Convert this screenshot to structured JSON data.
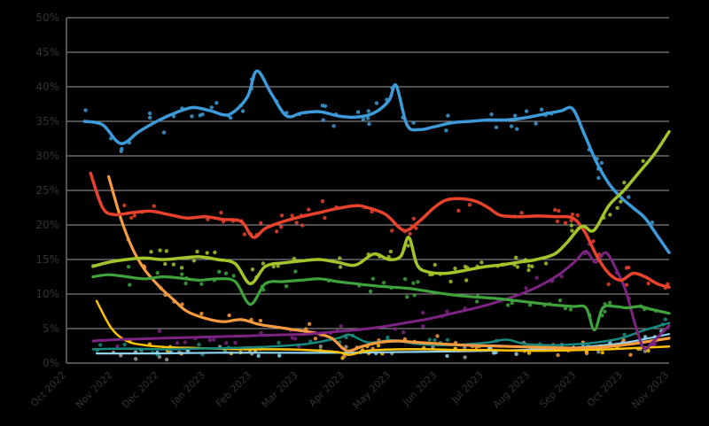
{
  "page": {
    "background": "#000000"
  },
  "chart_data": {
    "type": "line",
    "title": "",
    "xlabel": "",
    "ylabel": "",
    "ylim": [
      0,
      50
    ],
    "y_tick_step": 5,
    "y_tick_labels": [
      "0%",
      "5%",
      "10%",
      "15%",
      "20%",
      "25%",
      "30%",
      "35%",
      "40%",
      "45%",
      "50%"
    ],
    "x_tick_labels": [
      "Oct 2022",
      "Nov 2022",
      "Dec 2022",
      "Jan 2023",
      "Feb 2023",
      "Mar 2023",
      "Apr 2023",
      "May 2023",
      "Jun 2023",
      "Jul 2023",
      "Aug 2023",
      "Sep 2023",
      "Oct 2023",
      "Nov 2023"
    ],
    "grid": true,
    "legend": "none",
    "grid_color": "#9e9e9e",
    "spine_color": "#6e6e6e",
    "axis_text_color": "#333333",
    "marker_style": "scatter-dots-with-trend-lines",
    "series": [
      {
        "name": "gray",
        "color": "#9b9b9b",
        "line_width": 0,
        "dots_only": true,
        "dots": 25,
        "jitter": 1.5,
        "seed": 101,
        "points": [
          [
            0.05,
            1.6
          ],
          [
            0.3,
            1.8
          ],
          [
            0.6,
            2.0
          ],
          [
            0.85,
            2.2
          ],
          [
            1.0,
            2.4
          ]
        ]
      },
      {
        "name": "lightblue",
        "color": "#8fd2ee",
        "line_width": 2.2,
        "dots": 25,
        "jitter": 1.0,
        "seed": 102,
        "points": [
          [
            0.05,
            1.4
          ],
          [
            0.15,
            1.4
          ],
          [
            0.25,
            1.5
          ],
          [
            0.35,
            1.5
          ],
          [
            0.45,
            1.5
          ],
          [
            0.55,
            1.6
          ],
          [
            0.65,
            1.7
          ],
          [
            0.75,
            1.9
          ],
          [
            0.82,
            2.1
          ],
          [
            0.88,
            2.5
          ],
          [
            0.93,
            3.0
          ],
          [
            1.0,
            4.2
          ]
        ]
      },
      {
        "name": "yellow",
        "color": "#ffc200",
        "line_width": 2.5,
        "dots": 30,
        "jitter": 1.0,
        "seed": 103,
        "points": [
          [
            0.05,
            9.0
          ],
          [
            0.075,
            5.0
          ],
          [
            0.1,
            3.2
          ],
          [
            0.13,
            2.6
          ],
          [
            0.17,
            2.3
          ],
          [
            0.21,
            2.2
          ],
          [
            0.25,
            2.1
          ],
          [
            0.3,
            2.0
          ],
          [
            0.35,
            2.0
          ],
          [
            0.4,
            1.9
          ],
          [
            0.45,
            1.6
          ],
          [
            0.47,
            1.2
          ],
          [
            0.5,
            1.8
          ],
          [
            0.55,
            2.0
          ],
          [
            0.6,
            2.0
          ],
          [
            0.65,
            1.9
          ],
          [
            0.7,
            1.9
          ],
          [
            0.75,
            1.8
          ],
          [
            0.8,
            1.8
          ],
          [
            0.85,
            1.9
          ],
          [
            0.9,
            2.0
          ],
          [
            0.95,
            2.2
          ],
          [
            1.0,
            2.4
          ]
        ]
      },
      {
        "name": "teal",
        "color": "#18897f",
        "line_width": 2.5,
        "dots": 30,
        "jitter": 1.0,
        "seed": 104,
        "points": [
          [
            0.044,
            2.0
          ],
          [
            0.1,
            2.1
          ],
          [
            0.16,
            2.0
          ],
          [
            0.22,
            2.1
          ],
          [
            0.28,
            2.2
          ],
          [
            0.34,
            2.4
          ],
          [
            0.4,
            2.8
          ],
          [
            0.45,
            3.6
          ],
          [
            0.47,
            4.1
          ],
          [
            0.5,
            3.0
          ],
          [
            0.54,
            3.3
          ],
          [
            0.58,
            2.8
          ],
          [
            0.62,
            2.6
          ],
          [
            0.66,
            2.7
          ],
          [
            0.7,
            3.0
          ],
          [
            0.73,
            3.4
          ],
          [
            0.76,
            2.8
          ],
          [
            0.8,
            2.6
          ],
          [
            0.84,
            2.7
          ],
          [
            0.88,
            3.0
          ],
          [
            0.92,
            3.6
          ],
          [
            0.96,
            4.8
          ],
          [
            1.0,
            5.8
          ]
        ]
      },
      {
        "name": "orange",
        "color": "#f79b3f",
        "line_width": 3.2,
        "dots": 35,
        "jitter": 1.6,
        "seed": 105,
        "points": [
          [
            0.07,
            27.0
          ],
          [
            0.09,
            21.0
          ],
          [
            0.11,
            16.5
          ],
          [
            0.13,
            13.5
          ],
          [
            0.155,
            11.0
          ],
          [
            0.18,
            9.0
          ],
          [
            0.2,
            7.5
          ],
          [
            0.23,
            6.5
          ],
          [
            0.26,
            6.0
          ],
          [
            0.29,
            6.3
          ],
          [
            0.32,
            5.6
          ],
          [
            0.35,
            5.2
          ],
          [
            0.38,
            4.8
          ],
          [
            0.41,
            4.4
          ],
          [
            0.44,
            3.6
          ],
          [
            0.465,
            1.8
          ],
          [
            0.49,
            2.4
          ],
          [
            0.52,
            3.0
          ],
          [
            0.55,
            3.2
          ],
          [
            0.58,
            3.0
          ],
          [
            0.62,
            2.8
          ],
          [
            0.66,
            2.6
          ],
          [
            0.7,
            2.5
          ],
          [
            0.74,
            2.4
          ],
          [
            0.78,
            2.3
          ],
          [
            0.82,
            2.2
          ],
          [
            0.86,
            2.2
          ],
          [
            0.9,
            2.4
          ],
          [
            0.94,
            2.8
          ],
          [
            0.97,
            3.2
          ],
          [
            1.0,
            3.6
          ]
        ]
      },
      {
        "name": "purple",
        "color": "#7d2381",
        "line_width": 3.0,
        "dots": 40,
        "jitter": 1.8,
        "seed": 106,
        "points": [
          [
            0.044,
            3.2
          ],
          [
            0.08,
            3.4
          ],
          [
            0.12,
            3.5
          ],
          [
            0.16,
            3.6
          ],
          [
            0.2,
            3.7
          ],
          [
            0.24,
            3.8
          ],
          [
            0.28,
            3.9
          ],
          [
            0.32,
            4.0
          ],
          [
            0.36,
            4.1
          ],
          [
            0.4,
            4.2
          ],
          [
            0.44,
            4.5
          ],
          [
            0.48,
            4.8
          ],
          [
            0.52,
            5.2
          ],
          [
            0.56,
            5.8
          ],
          [
            0.6,
            6.4
          ],
          [
            0.64,
            7.2
          ],
          [
            0.68,
            8.0
          ],
          [
            0.72,
            9.0
          ],
          [
            0.76,
            10.2
          ],
          [
            0.79,
            11.4
          ],
          [
            0.82,
            13.0
          ],
          [
            0.845,
            14.8
          ],
          [
            0.862,
            16.2
          ],
          [
            0.878,
            14.6
          ],
          [
            0.895,
            16.0
          ],
          [
            0.912,
            13.6
          ],
          [
            0.928,
            10.5
          ],
          [
            0.944,
            5.5
          ],
          [
            0.958,
            2.2
          ],
          [
            0.972,
            3.0
          ],
          [
            0.986,
            4.2
          ],
          [
            1.0,
            5.4
          ]
        ]
      },
      {
        "name": "green",
        "color": "#3fa33c",
        "line_width": 3.2,
        "dots": 45,
        "jitter": 1.8,
        "seed": 107,
        "points": [
          [
            0.044,
            12.5
          ],
          [
            0.07,
            12.8
          ],
          [
            0.1,
            12.5
          ],
          [
            0.13,
            12.2
          ],
          [
            0.16,
            12.5
          ],
          [
            0.19,
            12.3
          ],
          [
            0.22,
            12.0
          ],
          [
            0.25,
            12.2
          ],
          [
            0.28,
            11.8
          ],
          [
            0.305,
            8.5
          ],
          [
            0.33,
            11.5
          ],
          [
            0.36,
            11.8
          ],
          [
            0.39,
            12.0
          ],
          [
            0.42,
            12.2
          ],
          [
            0.45,
            11.8
          ],
          [
            0.48,
            11.5
          ],
          [
            0.51,
            11.2
          ],
          [
            0.54,
            11.0
          ],
          [
            0.57,
            10.8
          ],
          [
            0.6,
            10.4
          ],
          [
            0.63,
            10.0
          ],
          [
            0.66,
            9.7
          ],
          [
            0.69,
            9.5
          ],
          [
            0.72,
            9.3
          ],
          [
            0.75,
            9.0
          ],
          [
            0.78,
            8.7
          ],
          [
            0.81,
            8.4
          ],
          [
            0.84,
            8.2
          ],
          [
            0.862,
            8.0
          ],
          [
            0.876,
            4.8
          ],
          [
            0.89,
            8.0
          ],
          [
            0.91,
            8.2
          ],
          [
            0.93,
            8.0
          ],
          [
            0.95,
            8.2
          ],
          [
            0.97,
            7.8
          ],
          [
            1.0,
            7.2
          ]
        ]
      },
      {
        "name": "red",
        "color": "#e8422d",
        "line_width": 3.5,
        "dots": 55,
        "jitter": 2.0,
        "seed": 108,
        "points": [
          [
            0.04,
            27.5
          ],
          [
            0.06,
            22.5
          ],
          [
            0.08,
            21.5
          ],
          [
            0.11,
            21.8
          ],
          [
            0.14,
            22.0
          ],
          [
            0.17,
            21.5
          ],
          [
            0.2,
            21.0
          ],
          [
            0.23,
            21.2
          ],
          [
            0.26,
            20.8
          ],
          [
            0.29,
            20.5
          ],
          [
            0.31,
            18.2
          ],
          [
            0.33,
            19.5
          ],
          [
            0.36,
            20.5
          ],
          [
            0.39,
            21.2
          ],
          [
            0.42,
            21.8
          ],
          [
            0.45,
            22.4
          ],
          [
            0.48,
            22.8
          ],
          [
            0.5,
            22.5
          ],
          [
            0.53,
            21.5
          ],
          [
            0.56,
            19.2
          ],
          [
            0.585,
            20.5
          ],
          [
            0.61,
            22.5
          ],
          [
            0.63,
            23.6
          ],
          [
            0.655,
            23.8
          ],
          [
            0.68,
            23.4
          ],
          [
            0.7,
            22.5
          ],
          [
            0.72,
            21.4
          ],
          [
            0.75,
            21.2
          ],
          [
            0.78,
            21.3
          ],
          [
            0.81,
            21.2
          ],
          [
            0.84,
            21.0
          ],
          [
            0.86,
            19.0
          ],
          [
            0.88,
            15.5
          ],
          [
            0.9,
            13.0
          ],
          [
            0.92,
            12.0
          ],
          [
            0.94,
            13.0
          ],
          [
            0.96,
            12.5
          ],
          [
            0.98,
            11.5
          ],
          [
            1.0,
            11.0
          ]
        ]
      },
      {
        "name": "blue",
        "color": "#3c9bd8",
        "line_width": 3.5,
        "dots": 60,
        "jitter": 2.3,
        "seed": 109,
        "points": [
          [
            0.03,
            35.0
          ],
          [
            0.06,
            34.5
          ],
          [
            0.09,
            31.8
          ],
          [
            0.12,
            33.5
          ],
          [
            0.15,
            35.0
          ],
          [
            0.18,
            36.2
          ],
          [
            0.21,
            37.0
          ],
          [
            0.24,
            36.5
          ],
          [
            0.27,
            36.0
          ],
          [
            0.3,
            38.5
          ],
          [
            0.316,
            42.3
          ],
          [
            0.34,
            39.0
          ],
          [
            0.365,
            35.8
          ],
          [
            0.39,
            36.2
          ],
          [
            0.42,
            36.4
          ],
          [
            0.45,
            35.8
          ],
          [
            0.48,
            35.6
          ],
          [
            0.51,
            36.2
          ],
          [
            0.535,
            38.0
          ],
          [
            0.547,
            40.2
          ],
          [
            0.565,
            34.5
          ],
          [
            0.585,
            33.8
          ],
          [
            0.61,
            34.2
          ],
          [
            0.64,
            34.8
          ],
          [
            0.67,
            35.0
          ],
          [
            0.7,
            35.2
          ],
          [
            0.73,
            35.2
          ],
          [
            0.76,
            35.5
          ],
          [
            0.79,
            36.0
          ],
          [
            0.82,
            36.5
          ],
          [
            0.84,
            36.8
          ],
          [
            0.86,
            33.0
          ],
          [
            0.88,
            29.0
          ],
          [
            0.9,
            26.0
          ],
          [
            0.92,
            24.0
          ],
          [
            0.94,
            22.5
          ],
          [
            0.96,
            21.0
          ],
          [
            0.98,
            18.5
          ],
          [
            1.0,
            16.0
          ]
        ]
      },
      {
        "name": "chartreuse",
        "color": "#a3c52a",
        "line_width": 3.5,
        "dots": 55,
        "jitter": 2.0,
        "seed": 110,
        "points": [
          [
            0.044,
            14.0
          ],
          [
            0.07,
            14.6
          ],
          [
            0.1,
            15.0
          ],
          [
            0.13,
            15.2
          ],
          [
            0.16,
            15.0
          ],
          [
            0.19,
            15.2
          ],
          [
            0.22,
            15.4
          ],
          [
            0.25,
            15.0
          ],
          [
            0.28,
            14.4
          ],
          [
            0.305,
            11.5
          ],
          [
            0.33,
            14.0
          ],
          [
            0.36,
            14.5
          ],
          [
            0.39,
            14.8
          ],
          [
            0.42,
            15.0
          ],
          [
            0.45,
            14.6
          ],
          [
            0.48,
            14.2
          ],
          [
            0.51,
            15.8
          ],
          [
            0.535,
            15.0
          ],
          [
            0.555,
            15.5
          ],
          [
            0.568,
            18.2
          ],
          [
            0.582,
            14.2
          ],
          [
            0.6,
            13.2
          ],
          [
            0.63,
            13.0
          ],
          [
            0.66,
            13.4
          ],
          [
            0.69,
            13.9
          ],
          [
            0.72,
            14.2
          ],
          [
            0.75,
            14.6
          ],
          [
            0.78,
            15.0
          ],
          [
            0.81,
            15.8
          ],
          [
            0.83,
            17.4
          ],
          [
            0.855,
            19.8
          ],
          [
            0.875,
            19.2
          ],
          [
            0.9,
            22.8
          ],
          [
            0.925,
            25.0
          ],
          [
            0.95,
            27.6
          ],
          [
            0.975,
            30.2
          ],
          [
            1.0,
            33.5
          ]
        ]
      }
    ]
  }
}
